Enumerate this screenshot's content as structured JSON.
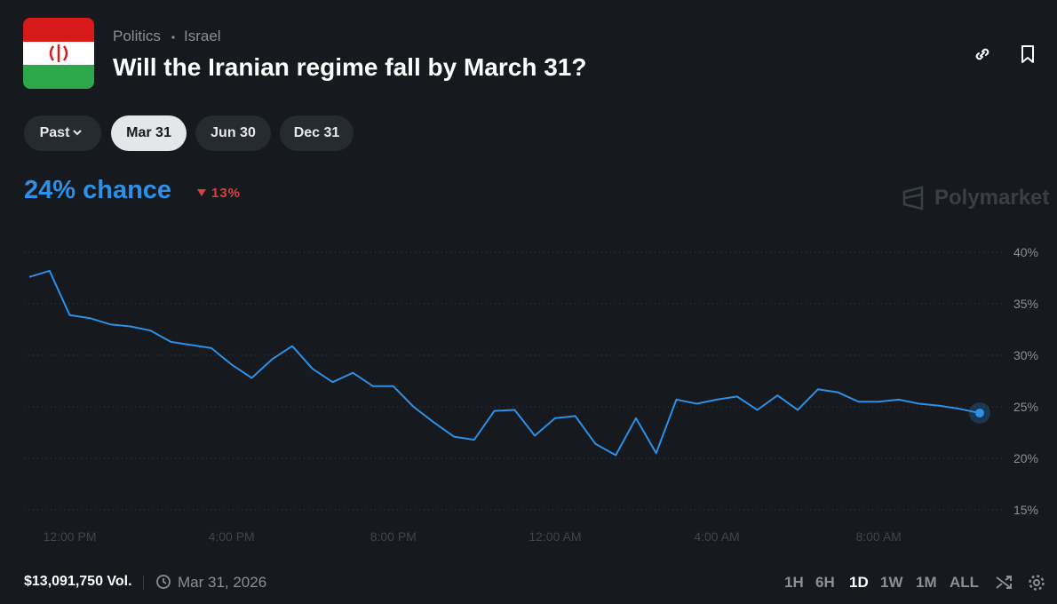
{
  "header": {
    "category": "Politics",
    "subcategory": "Israel",
    "title": "Will the Iranian regime fall by March 31?"
  },
  "tabs": {
    "dropdown": "Past",
    "items": [
      "Mar 31",
      "Jun 30",
      "Dec 31"
    ],
    "selected": 0
  },
  "summary": {
    "chance": "24% chance",
    "change": "13%"
  },
  "watermark": "Polymarket",
  "footer": {
    "volume": "$13,091,750 Vol.",
    "date": "Mar 31, 2026",
    "ranges": [
      "1H",
      "6H",
      "1D",
      "1W",
      "1M",
      "ALL"
    ],
    "selected": 2
  },
  "chart_data": {
    "type": "line",
    "x": [
      "11:00 AM",
      "11:30 AM",
      "12:00 PM",
      "12:30 PM",
      "1:00 PM",
      "1:30 PM",
      "2:00 PM",
      "2:30 PM",
      "3:00 PM",
      "3:30 PM",
      "4:00 PM",
      "4:30 PM",
      "5:00 PM",
      "5:30 PM",
      "6:00 PM",
      "6:30 PM",
      "7:00 PM",
      "7:30 PM",
      "8:00 PM",
      "8:30 PM",
      "9:00 PM",
      "9:30 PM",
      "10:00 PM",
      "10:30 PM",
      "11:00 PM",
      "11:30 PM",
      "12:00 AM",
      "12:30 AM",
      "1:00 AM",
      "1:30 AM",
      "2:00 AM",
      "2:30 AM",
      "3:00 AM",
      "3:30 AM",
      "4:00 AM",
      "4:30 AM",
      "5:00 AM",
      "5:30 AM",
      "6:00 AM",
      "6:30 AM",
      "7:00 AM",
      "7:30 AM",
      "8:00 AM",
      "8:30 AM",
      "9:00 AM",
      "9:30 AM",
      "10:00 AM",
      "10:30 AM"
    ],
    "xticks": [
      "12:00 PM",
      "4:00 PM",
      "8:00 PM",
      "12:00 AM",
      "4:00 AM",
      "8:00 AM"
    ],
    "series": [
      {
        "name": "Mar 31",
        "color": "#2d8fe6",
        "values": [
          37.6,
          38.2,
          33.9,
          33.6,
          33.0,
          32.8,
          32.4,
          31.3,
          31.0,
          30.7,
          29.1,
          27.8,
          29.6,
          30.9,
          28.7,
          27.4,
          28.3,
          27.0,
          27.0,
          25.0,
          23.5,
          22.1,
          21.8,
          24.6,
          24.7,
          22.2,
          23.9,
          24.1,
          21.4,
          20.3,
          23.9,
          20.5,
          25.7,
          25.3,
          25.7,
          26.0,
          24.7,
          26.1,
          24.7,
          26.7,
          26.4,
          25.5,
          25.5,
          25.7,
          25.3,
          25.1,
          24.8,
          24.4
        ]
      }
    ],
    "ylim": [
      15,
      40
    ],
    "yticks": [
      {
        "value": 15,
        "label": "15%"
      },
      {
        "value": 20,
        "label": "20%"
      },
      {
        "value": 25,
        "label": "25%"
      },
      {
        "value": 30,
        "label": "30%"
      },
      {
        "value": 35,
        "label": "35%"
      },
      {
        "value": 40,
        "label": "40%"
      }
    ],
    "grid": true
  }
}
